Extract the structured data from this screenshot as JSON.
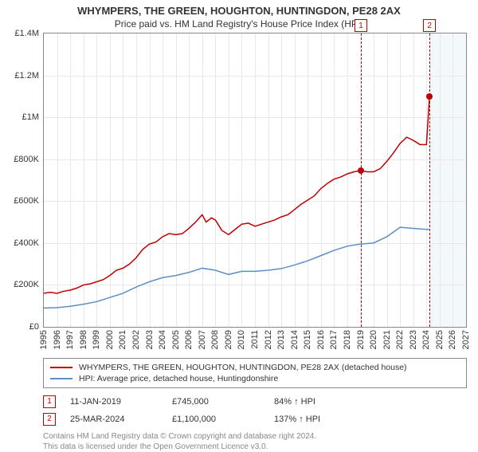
{
  "title": "WHYMPERS, THE GREEN, HOUGHTON, HUNTINGDON, PE28 2AX",
  "subtitle": "Price paid vs. HM Land Registry's House Price Index (HPI)",
  "chart": {
    "type": "line",
    "background_color": "#ffffff",
    "grid_color": "#e8e8e8",
    "border_color": "#888888",
    "x": {
      "min": 1995,
      "max": 2027,
      "ticks": [
        1995,
        1996,
        1997,
        1998,
        1999,
        2000,
        2001,
        2002,
        2003,
        2004,
        2005,
        2006,
        2007,
        2008,
        2009,
        2010,
        2011,
        2012,
        2013,
        2014,
        2015,
        2016,
        2017,
        2018,
        2019,
        2020,
        2021,
        2022,
        2023,
        2024,
        2025,
        2026,
        2027
      ]
    },
    "y": {
      "min": 0,
      "max": 1400000,
      "tick_step": 200000,
      "tick_labels": [
        "£0",
        "£200K",
        "£400K",
        "£600K",
        "£800K",
        "£1M",
        "£1.2M",
        "£1.4M"
      ]
    },
    "future_band": {
      "from": 2024.2,
      "to": 2027,
      "color": "#eaf2fb"
    },
    "series": [
      {
        "id": "property",
        "label": "WHYMPERS, THE GREEN, HOUGHTON, HUNTINGDON, PE28 2AX (detached house)",
        "color": "#c00000",
        "line_width": 1.5,
        "points": [
          [
            1995.0,
            160000
          ],
          [
            1995.5,
            165000
          ],
          [
            1996.0,
            160000
          ],
          [
            1996.5,
            170000
          ],
          [
            1997.0,
            175000
          ],
          [
            1997.5,
            185000
          ],
          [
            1998.0,
            200000
          ],
          [
            1998.5,
            205000
          ],
          [
            1999.0,
            215000
          ],
          [
            1999.5,
            225000
          ],
          [
            2000.0,
            245000
          ],
          [
            2000.5,
            270000
          ],
          [
            2001.0,
            280000
          ],
          [
            2001.5,
            300000
          ],
          [
            2002.0,
            330000
          ],
          [
            2002.5,
            370000
          ],
          [
            2003.0,
            395000
          ],
          [
            2003.5,
            405000
          ],
          [
            2004.0,
            430000
          ],
          [
            2004.5,
            445000
          ],
          [
            2005.0,
            440000
          ],
          [
            2005.5,
            445000
          ],
          [
            2006.0,
            470000
          ],
          [
            2006.5,
            500000
          ],
          [
            2007.0,
            535000
          ],
          [
            2007.3,
            500000
          ],
          [
            2007.7,
            520000
          ],
          [
            2008.0,
            510000
          ],
          [
            2008.5,
            460000
          ],
          [
            2009.0,
            440000
          ],
          [
            2009.5,
            465000
          ],
          [
            2010.0,
            490000
          ],
          [
            2010.5,
            495000
          ],
          [
            2011.0,
            480000
          ],
          [
            2011.5,
            490000
          ],
          [
            2012.0,
            500000
          ],
          [
            2012.5,
            510000
          ],
          [
            2013.0,
            525000
          ],
          [
            2013.5,
            535000
          ],
          [
            2014.0,
            560000
          ],
          [
            2014.5,
            585000
          ],
          [
            2015.0,
            605000
          ],
          [
            2015.5,
            625000
          ],
          [
            2016.0,
            660000
          ],
          [
            2016.5,
            685000
          ],
          [
            2017.0,
            705000
          ],
          [
            2017.5,
            715000
          ],
          [
            2018.0,
            730000
          ],
          [
            2018.5,
            740000
          ],
          [
            2019.03,
            745000
          ],
          [
            2019.5,
            740000
          ],
          [
            2020.0,
            740000
          ],
          [
            2020.5,
            755000
          ],
          [
            2021.0,
            790000
          ],
          [
            2021.5,
            830000
          ],
          [
            2022.0,
            875000
          ],
          [
            2022.5,
            905000
          ],
          [
            2023.0,
            890000
          ],
          [
            2023.5,
            870000
          ],
          [
            2024.0,
            870000
          ],
          [
            2024.23,
            1100000
          ]
        ]
      },
      {
        "id": "hpi",
        "label": "HPI: Average price, detached house, Huntingdonshire",
        "color": "#5b8fc7",
        "line_width": 1.5,
        "points": [
          [
            1995.0,
            90000
          ],
          [
            1996.0,
            92000
          ],
          [
            1997.0,
            98000
          ],
          [
            1998.0,
            108000
          ],
          [
            1999.0,
            120000
          ],
          [
            2000.0,
            140000
          ],
          [
            2001.0,
            160000
          ],
          [
            2002.0,
            190000
          ],
          [
            2003.0,
            215000
          ],
          [
            2004.0,
            235000
          ],
          [
            2005.0,
            245000
          ],
          [
            2006.0,
            260000
          ],
          [
            2007.0,
            280000
          ],
          [
            2008.0,
            270000
          ],
          [
            2009.0,
            250000
          ],
          [
            2010.0,
            265000
          ],
          [
            2011.0,
            265000
          ],
          [
            2012.0,
            270000
          ],
          [
            2013.0,
            278000
          ],
          [
            2014.0,
            295000
          ],
          [
            2015.0,
            315000
          ],
          [
            2016.0,
            340000
          ],
          [
            2017.0,
            365000
          ],
          [
            2018.0,
            385000
          ],
          [
            2019.0,
            395000
          ],
          [
            2020.0,
            400000
          ],
          [
            2021.0,
            430000
          ],
          [
            2022.0,
            475000
          ],
          [
            2023.0,
            470000
          ],
          [
            2024.0,
            465000
          ],
          [
            2024.2,
            465000
          ]
        ]
      }
    ],
    "markers": [
      {
        "n": "1",
        "x": 2019.03,
        "y": 745000,
        "box_top_offset": -18
      },
      {
        "n": "2",
        "x": 2024.23,
        "y": 1100000,
        "box_top_offset": -18
      }
    ]
  },
  "legend": {
    "items": [
      {
        "color": "#c00000",
        "label_ref": "chart.series.0.label"
      },
      {
        "color": "#5b8fc7",
        "label_ref": "chart.series.1.label"
      }
    ]
  },
  "sales": [
    {
      "n": "1",
      "date": "11-JAN-2019",
      "price": "£745,000",
      "hpi": "84% ↑ HPI"
    },
    {
      "n": "2",
      "date": "25-MAR-2024",
      "price": "£1,100,000",
      "hpi": "137% ↑ HPI"
    }
  ],
  "footer": {
    "line1": "Contains HM Land Registry data © Crown copyright and database right 2024.",
    "line2": "This data is licensed under the Open Government Licence v3.0."
  },
  "style": {
    "title_fontsize": 13,
    "subtitle_fontsize": 12,
    "tick_fontsize": 11,
    "legend_fontsize": 10.5,
    "footer_fontsize": 10,
    "text_color": "#333333",
    "muted_color": "#888888",
    "marker_color": "#c00000"
  }
}
